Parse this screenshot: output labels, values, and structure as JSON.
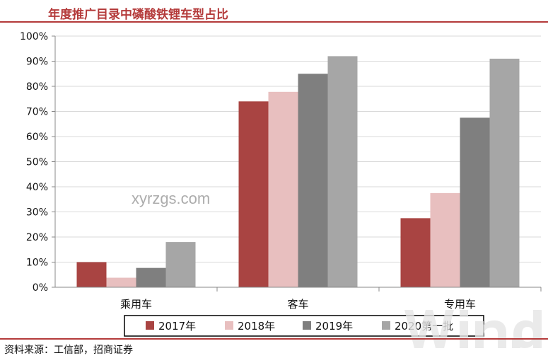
{
  "title": "年度推广目录中磷酸铁锂车型占比",
  "source": "资料来源：工信部，招商证券",
  "watermark": "xyrzgs.com",
  "colors": {
    "title": "#b43a3a",
    "rule": "#b43a3a",
    "gridline": "#d9d9d9",
    "axis": "#888888"
  },
  "chart_data": {
    "type": "bar",
    "categories": [
      "乘用车",
      "客车",
      "专用车"
    ],
    "series": [
      {
        "name": "2017年",
        "color": "#a94442",
        "values": [
          10,
          74,
          27.5
        ]
      },
      {
        "name": "2018年",
        "color": "#e8bfbf",
        "values": [
          3.8,
          77.8,
          37.5
        ]
      },
      {
        "name": "2019年",
        "color": "#7f7f7f",
        "values": [
          7.7,
          85,
          67.5
        ]
      },
      {
        "name": "2020第一批",
        "color": "#a6a6a6",
        "values": [
          18,
          92,
          91
        ]
      }
    ],
    "ylim": [
      0,
      100
    ],
    "yticks": [
      0,
      10,
      20,
      30,
      40,
      50,
      60,
      70,
      80,
      90,
      100
    ],
    "ytick_labels": [
      "0%",
      "10%",
      "20%",
      "30%",
      "40%",
      "50%",
      "60%",
      "70%",
      "80%",
      "90%",
      "100%"
    ],
    "grid": true,
    "legend_position": "bottom"
  }
}
